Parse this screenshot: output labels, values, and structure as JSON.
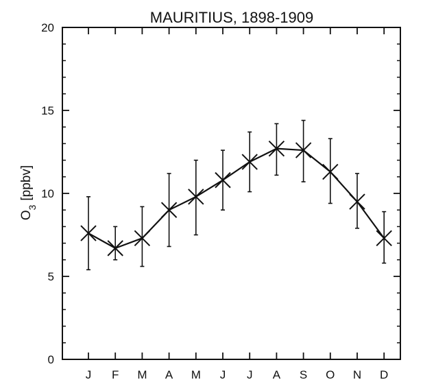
{
  "chart_data": {
    "type": "line",
    "title": "MAURITIUS, 1898-1909",
    "ylabel_main": "O",
    "ylabel_sub": "3",
    "ylabel_unit": "[ppbv]",
    "xlabel": "",
    "ylim": [
      0,
      20
    ],
    "yticks": [
      0,
      5,
      10,
      15,
      20
    ],
    "yminor_step": 1,
    "grid": false,
    "categories": [
      "J",
      "F",
      "M",
      "A",
      "M",
      "J",
      "J",
      "A",
      "S",
      "O",
      "N",
      "D"
    ],
    "series": [
      {
        "values": [
          7.6,
          6.7,
          7.3,
          9.0,
          9.8,
          10.8,
          11.9,
          12.7,
          12.6,
          11.3,
          9.5,
          7.3
        ],
        "error_low": [
          5.4,
          6.0,
          5.6,
          6.8,
          7.5,
          9.0,
          10.1,
          11.1,
          10.7,
          9.4,
          7.9,
          5.8
        ],
        "error_high": [
          9.8,
          8.0,
          9.2,
          11.2,
          12.0,
          12.6,
          13.7,
          14.2,
          14.4,
          13.3,
          11.2,
          8.9
        ],
        "marker": "x",
        "color": "#111111"
      }
    ]
  }
}
